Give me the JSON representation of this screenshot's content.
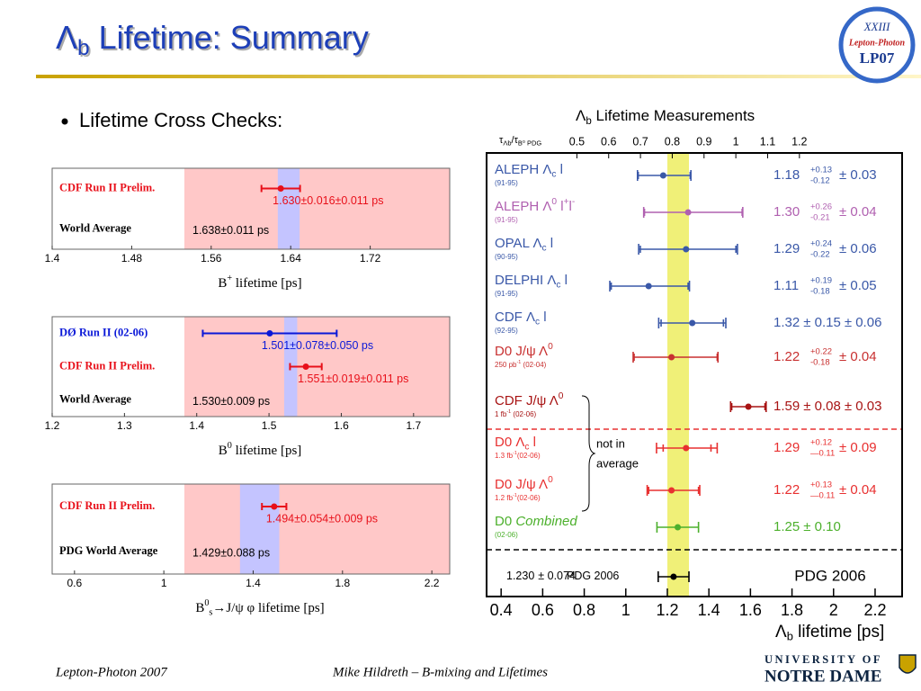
{
  "title": [
    {
      "t": "Λ"
    },
    {
      "sub": "b"
    },
    {
      "t": " Lifetime: Summary"
    }
  ],
  "bullet": "Lifetime Cross Checks:",
  "logo": {
    "line1": "XXIII",
    "line2": "Lepton-Photon",
    "line3": "LP07"
  },
  "footer": {
    "left": "Lepton-Photon 2007",
    "center": "Mike Hildreth – B-mixing and Lifetimes",
    "university": "UNIVERSITY OF",
    "name": "NOTRE DAME"
  },
  "chart_data": [
    {
      "type": "forest",
      "xlabel": [
        {
          "t": "B"
        },
        {
          "sup": "+"
        },
        {
          "t": " lifetime [ps]"
        }
      ],
      "xlim": [
        1.4,
        1.8
      ],
      "xticks": [
        1.4,
        1.48,
        1.56,
        1.64,
        1.72
      ],
      "background": "#ffc8c8",
      "rows": [
        {
          "name": "CDF Run II Prelim.",
          "color": "#e8101a",
          "value": 1.63,
          "errors": [
            0.016,
            0.011
          ],
          "value_label": "1.630±0.016±0.011 ps"
        }
      ],
      "band": {
        "name": "World Average",
        "color": "#c4c4ff",
        "value": 1.638,
        "error": 0.011,
        "value_label": "1.638±0.011 ps"
      }
    },
    {
      "type": "forest",
      "xlabel": [
        {
          "t": "B"
        },
        {
          "sup": "0"
        },
        {
          "t": " lifetime [ps]"
        }
      ],
      "xlim": [
        1.2,
        1.75
      ],
      "xticks": [
        1.2,
        1.3,
        1.4,
        1.5,
        1.6,
        1.7
      ],
      "background": "#ffc8c8",
      "rows": [
        {
          "name": "DØ Run II (02-06)",
          "color": "#0a18d8",
          "value": 1.501,
          "errors": [
            0.078,
            0.05
          ],
          "value_label": "1.501±0.078±0.050 ps"
        },
        {
          "name": "CDF Run II Prelim.",
          "color": "#e8101a",
          "value": 1.551,
          "errors": [
            0.019,
            0.011
          ],
          "value_label": "1.551±0.019±0.011 ps"
        }
      ],
      "band": {
        "name": "World Average",
        "color": "#c4c4ff",
        "value": 1.53,
        "error": 0.009,
        "value_label": "1.530±0.009 ps"
      }
    },
    {
      "type": "forest",
      "xlabel": [
        {
          "t": "B"
        },
        {
          "sup": "0"
        },
        {
          "sub": "s"
        },
        {
          "t": "→J/ψ φ lifetime [ps]"
        }
      ],
      "xlim": [
        0.5,
        2.28
      ],
      "xticks": [
        0.6,
        1,
        1.4,
        1.8,
        2.2
      ],
      "background": "#ffc8c8",
      "rows": [
        {
          "name": "CDF Run II Prelim.",
          "color": "#e8101a",
          "value": 1.494,
          "errors": [
            0.054,
            0.009
          ],
          "value_label": "1.494±0.054±0.009 ps"
        }
      ],
      "band": {
        "name": "PDG World Average",
        "color": "#c4c4ff",
        "value": 1.429,
        "error": 0.088,
        "value_label": "1.429±0.088 ps"
      }
    },
    {
      "type": "measurements",
      "title": [
        {
          "t": "Λ"
        },
        {
          "sub": "b"
        },
        {
          "t": " Lifetime Measurements"
        }
      ],
      "x2label": [
        {
          "t": "τ"
        },
        {
          "sub": "Λb"
        },
        {
          "t": "/τ"
        },
        {
          "sub": "B⁰ PDG"
        }
      ],
      "xlabel": [
        {
          "t": "Λ"
        },
        {
          "sub": "b"
        },
        {
          "t": " lifetime [ps]"
        }
      ],
      "xlim": [
        0.33,
        2.33
      ],
      "xticks": [
        0.4,
        0.6,
        0.8,
        1,
        1.2,
        1.4,
        1.6,
        1.8,
        2,
        2.2
      ],
      "x2lim": [
        0.216,
        1.523
      ],
      "x2ticks": [
        0.5,
        0.6,
        0.7,
        0.8,
        0.9,
        1,
        1.1,
        1.2
      ],
      "band": {
        "color": "#f0f078",
        "value": 1.252,
        "error": 0.052
      },
      "rows": [
        {
          "name": [
            {
              "t": "ALEPH Λ"
            },
            {
              "sub": "c"
            },
            {
              "t": " l"
            }
          ],
          "detail": [
            {
              "t": "(91-95)"
            }
          ],
          "color": "#3a58a8",
          "value": 1.18,
          "err_up": {
            "value": 0.13,
            "label": "+0.13"
          },
          "err_down": -0.12,
          "syst": {
            "value": 0.03,
            "label": "± 0.03"
          }
        },
        {
          "name": [
            {
              "t": "ALEPH Λ"
            },
            {
              "sup": "0"
            },
            {
              "t": " l"
            },
            {
              "sup": "+"
            },
            {
              "t": "l"
            },
            {
              "sup": "-"
            }
          ],
          "detail": [
            {
              "t": "(91-95)"
            }
          ],
          "color": "#b060b0",
          "value": 1.3,
          "value_label": "1.30",
          "err_up": {
            "value": 0.26,
            "label": "+0.26"
          },
          "err_down": -0.21,
          "syst": {
            "value": 0.04,
            "label": "± 0.04"
          }
        },
        {
          "name": [
            {
              "t": "OPAL Λ"
            },
            {
              "sub": "c"
            },
            {
              "t": " l"
            }
          ],
          "detail": [
            {
              "t": "(90-95)"
            }
          ],
          "color": "#3a58a8",
          "value": 1.29,
          "err_up": {
            "value": 0.24,
            "label": "+0.24"
          },
          "err_down": -0.22,
          "syst": {
            "value": 0.06,
            "label": "± 0.06"
          }
        },
        {
          "name": [
            {
              "t": "DELPHI Λ"
            },
            {
              "sub": "c"
            },
            {
              "t": " l"
            }
          ],
          "detail": [
            {
              "t": "(91-95)"
            }
          ],
          "color": "#3a58a8",
          "value": 1.11,
          "err_up": {
            "value": 0.19,
            "label": "+0.19"
          },
          "err_down": -0.18,
          "syst": {
            "value": 0.05,
            "label": "± 0.05"
          }
        },
        {
          "name": [
            {
              "t": "CDF Λ"
            },
            {
              "sub": "c"
            },
            {
              "t": " l"
            }
          ],
          "detail": [
            {
              "t": "(92-95)"
            }
          ],
          "color": "#3a58a8",
          "value": 1.32,
          "stat": {
            "value": 0.15,
            "label": "± 0.15"
          },
          "syst": {
            "value": 0.06,
            "label": "± 0.06"
          }
        },
        {
          "name": [
            {
              "t": "D0 J/ψ Λ"
            },
            {
              "sup": "0"
            }
          ],
          "detail": [
            {
              "t": "250 pb"
            },
            {
              "sup": "-1"
            },
            {
              "t": " (02-04)"
            }
          ],
          "color": "#c83030",
          "value": 1.22,
          "err_up": {
            "value": 0.22,
            "label": "+0.22"
          },
          "err_down": -0.18,
          "syst": {
            "value": 0.04,
            "label": "± 0.04"
          }
        },
        {
          "name": [
            {
              "t": "CDF  J/ψ Λ"
            },
            {
              "sup": "0"
            }
          ],
          "detail": [
            {
              "t": "1 fb"
            },
            {
              "sup": "-1"
            },
            {
              "t": " (02-06)"
            }
          ],
          "color": "#a81414",
          "value": 1.59,
          "stat": {
            "value": 0.08,
            "label": "± 0.08"
          },
          "syst": {
            "value": 0.03,
            "label": "± 0.03"
          }
        },
        {
          "name": [
            {
              "t": "D0   Λ"
            },
            {
              "sub": "c"
            },
            {
              "t": " l"
            }
          ],
          "detail": [
            {
              "t": "1.3 fb"
            },
            {
              "sup": "-1"
            },
            {
              "t": "(02-06)"
            }
          ],
          "color": "#e83030",
          "value": 1.29,
          "err_up": {
            "value": 0.12,
            "label": "+0.12"
          },
          "err_down": {
            "value": -0.11,
            "label": "—0.11"
          },
          "syst": {
            "value": 0.09,
            "label": "± 0.09"
          }
        },
        {
          "name": [
            {
              "t": "D0  J/ψ Λ"
            },
            {
              "sup": "0"
            }
          ],
          "detail": [
            {
              "t": "1.2 fb"
            },
            {
              "sup": "-1"
            },
            {
              "t": "(02-06)"
            }
          ],
          "color": "#e83030",
          "value": 1.22,
          "err_up": {
            "value": 0.13,
            "label": "+0.13"
          },
          "err_down": {
            "value": -0.11,
            "label": "—0.11"
          },
          "syst": {
            "value": 0.04,
            "label": "± 0.04"
          }
        },
        {
          "name": [
            {
              "t": "D0  "
            },
            {
              "i": "Combined"
            }
          ],
          "detail": [
            {
              "t": "(02-06)"
            }
          ],
          "color": "#4cb02c",
          "value": 1.25,
          "stat": {
            "value": 0.1,
            "label": "± 0.10"
          }
        },
        {
          "name": [
            {
              "t": "PDG 2006"
            }
          ],
          "color": "#000000",
          "value": 1.23,
          "value_label": "1.230",
          "stat": {
            "value": 0.074,
            "label": "± 0.074"
          },
          "summary": true
        }
      ],
      "annotations": [
        "not in",
        "average"
      ],
      "box_label": "PDG 2006"
    }
  ]
}
